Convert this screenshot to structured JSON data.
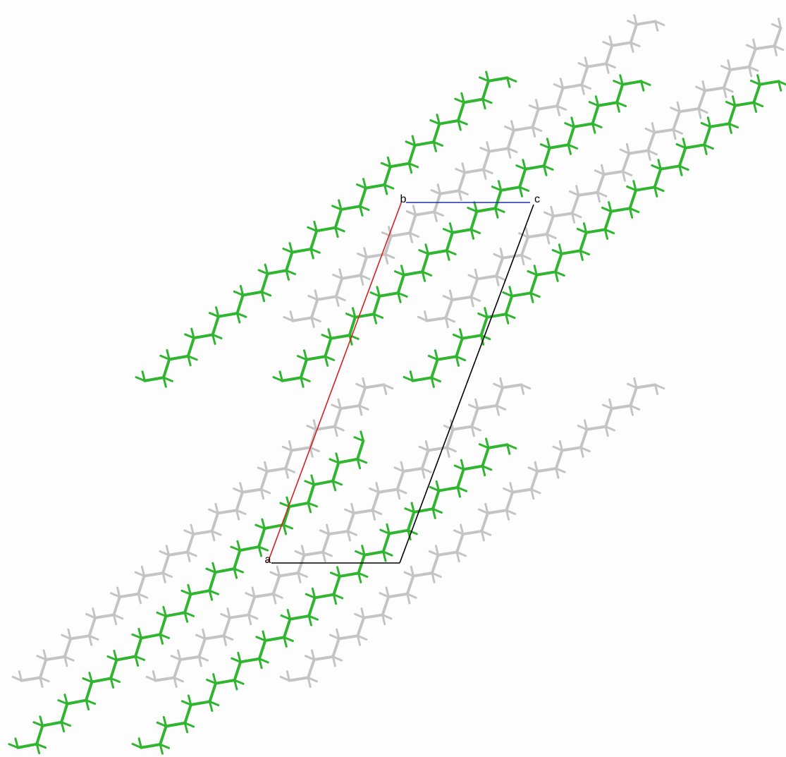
{
  "labels": {
    "a": "a",
    "b": "b",
    "c": "c"
  }
}
